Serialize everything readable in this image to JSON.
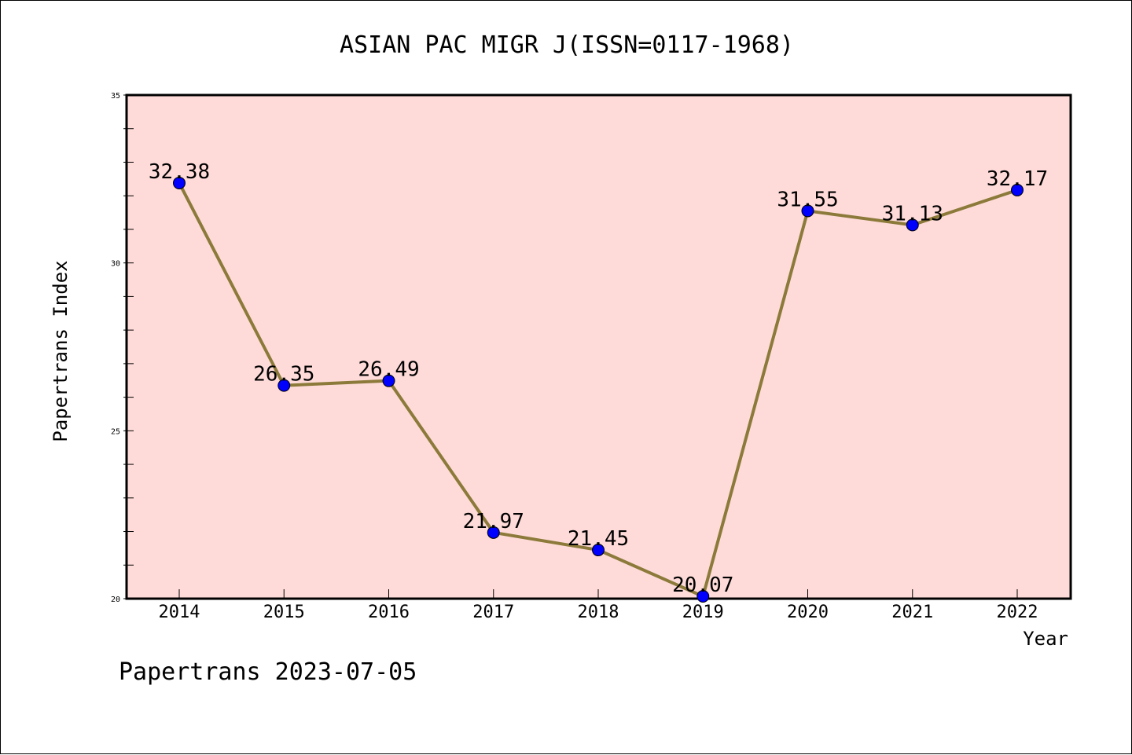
{
  "chart_data": {
    "type": "line",
    "title": "ASIAN PAC MIGR J(ISSN=0117-1968)",
    "xlabel": "Year",
    "ylabel": "Papertrans Index",
    "x": [
      "2014",
      "2015",
      "2016",
      "2017",
      "2018",
      "2019",
      "2020",
      "2021",
      "2022"
    ],
    "series": [
      {
        "values": [
          32.38,
          26.35,
          26.49,
          21.97,
          21.45,
          20.07,
          31.55,
          31.13,
          32.17
        ],
        "labels": [
          "32.38",
          "26.35",
          "26.49",
          "21.97",
          "21.45",
          "20.07",
          "31.55",
          "31.13",
          "32.17"
        ],
        "line_color": "#8c7a3a",
        "marker_color": "#0000ff"
      }
    ],
    "ylim": [
      20,
      35
    ],
    "yticks": [
      "20",
      "25",
      "30",
      "35"
    ],
    "plot_background": "#fedbd9",
    "grid": false,
    "legend": "none"
  },
  "footer": {
    "text": "Papertrans 2023-07-05"
  }
}
